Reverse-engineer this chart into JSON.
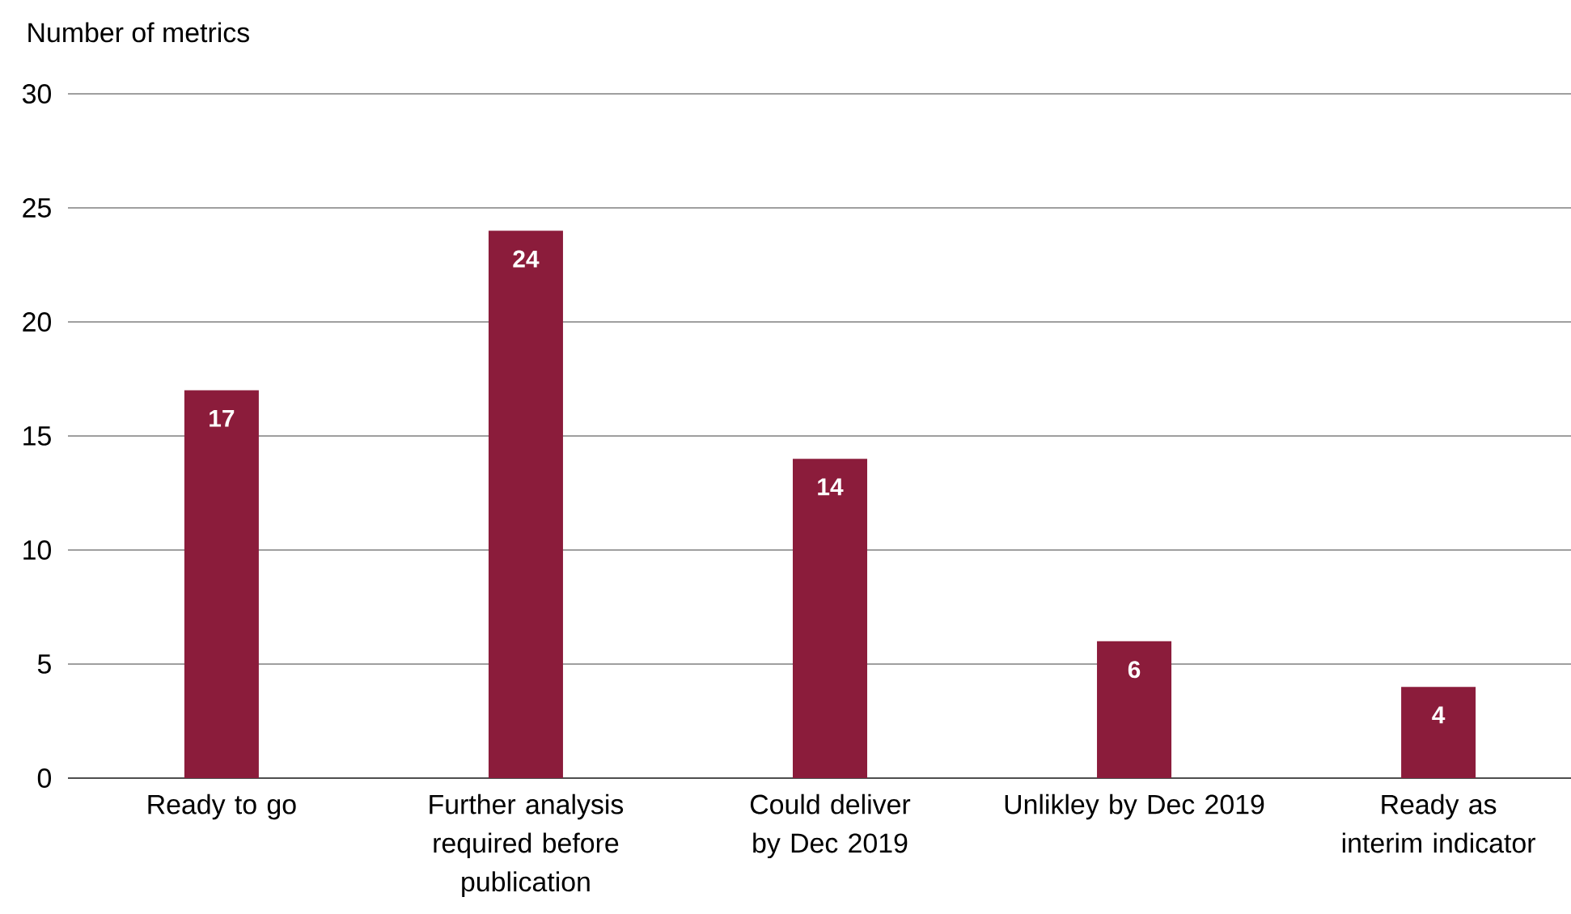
{
  "chart_data": {
    "type": "bar",
    "ylabel": "Number of metrics",
    "categories": [
      "Ready to go",
      "Further analysis required before publication",
      "Could deliver by Dec 2019",
      "Unlikley by Dec 2019",
      "Ready as interim indicator"
    ],
    "values": [
      17,
      24,
      14,
      6,
      4
    ],
    "color": "#8b1c3b",
    "ylim": [
      0,
      30
    ],
    "yticks": [
      0,
      5,
      10,
      15,
      20,
      25,
      30
    ],
    "grid": "y",
    "data_labels": true
  }
}
